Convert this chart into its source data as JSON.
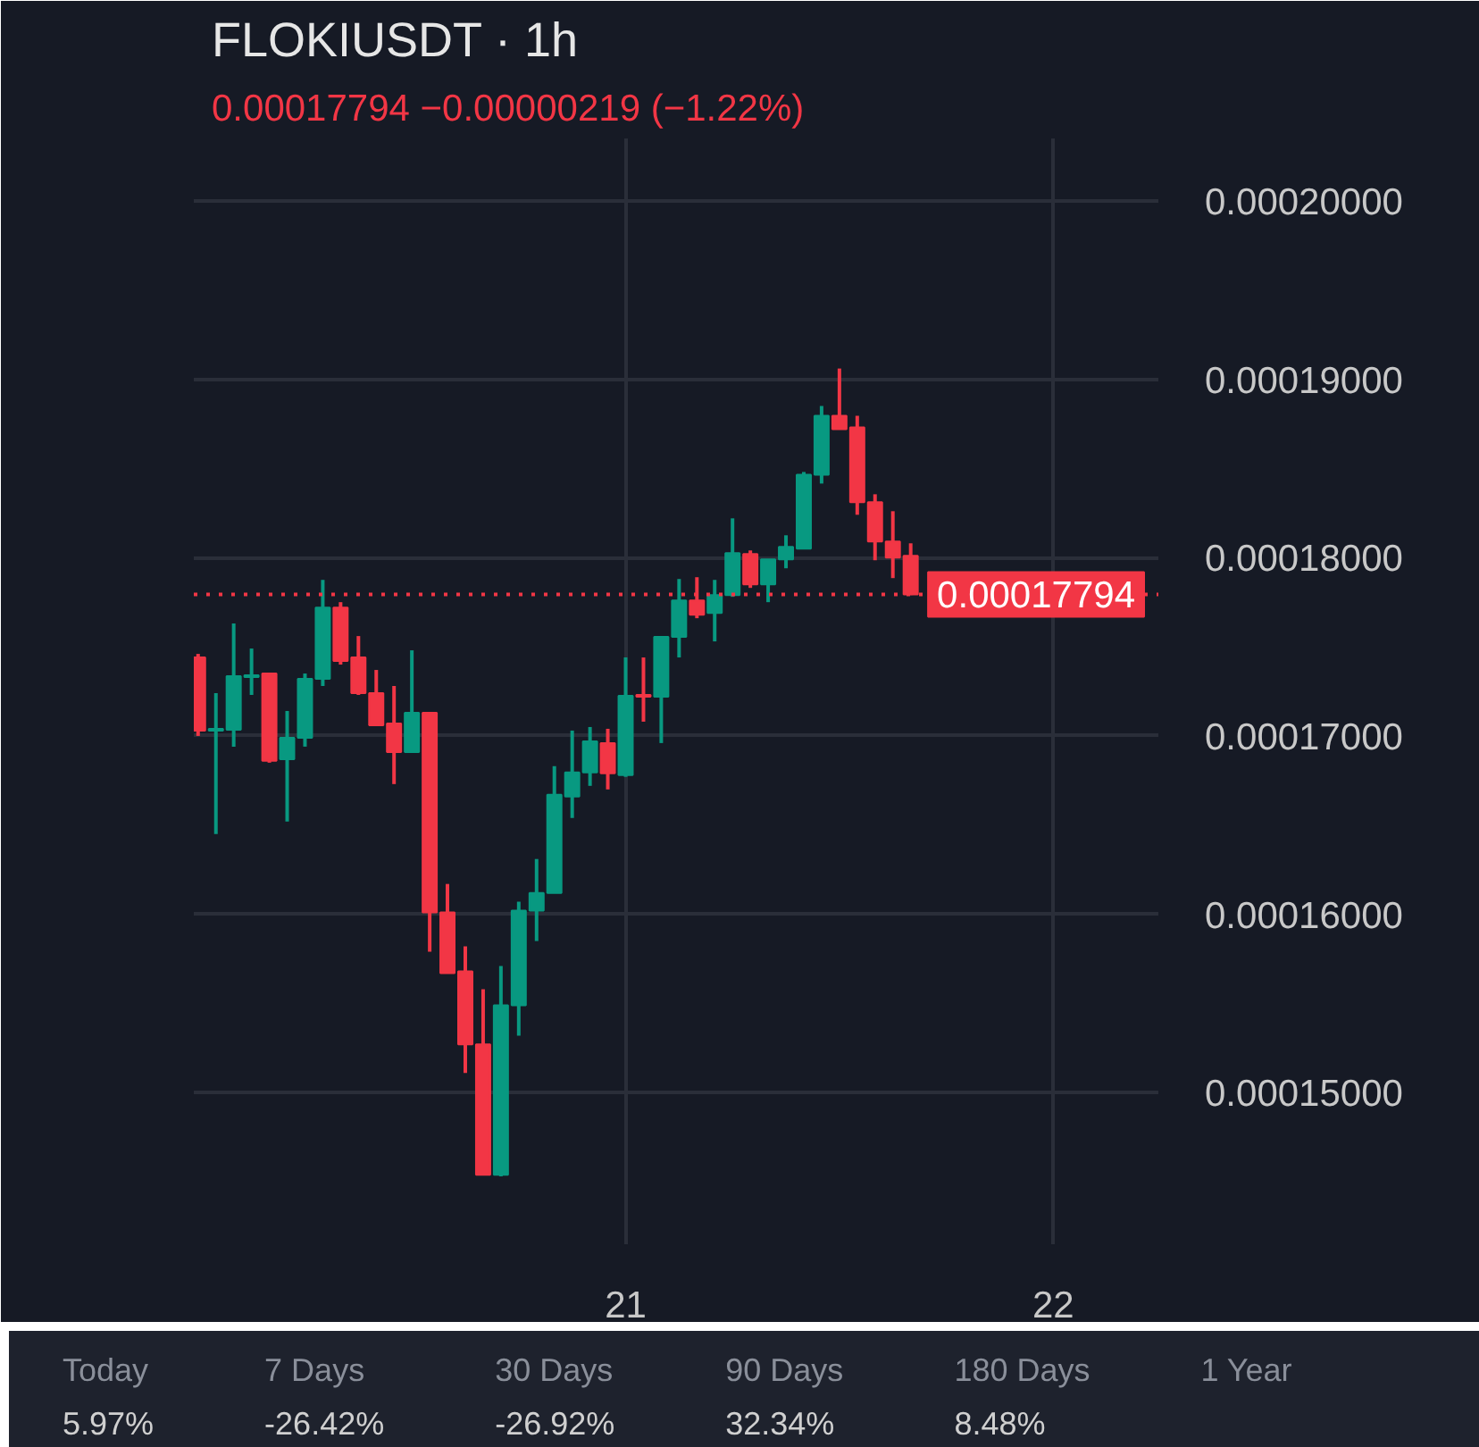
{
  "chart_data": {
    "type": "candlestick",
    "title": "FLOKIUSDT · 1h",
    "subtitle": "0.00017794  −0.00000219 (−1.22%)",
    "x": [
      20.0,
      20.0417,
      20.0833,
      20.125,
      20.1667,
      20.2083,
      20.25,
      20.2917,
      20.3333,
      20.375,
      20.4167,
      20.4583,
      20.5,
      20.5417,
      20.5833,
      20.625,
      20.6667,
      20.7083,
      20.75,
      20.7917,
      20.8333,
      20.875,
      20.9167,
      20.9583,
      21.0,
      21.0417,
      21.0833,
      21.125,
      21.1667,
      21.2083,
      21.25,
      21.2917,
      21.3333,
      21.375,
      21.4167,
      21.4583,
      21.5,
      21.5417,
      21.5833,
      21.625,
      21.6667
    ],
    "ohlc": [
      [
        0.0001744,
        0.0001746,
        0.00017,
        0.0001703
      ],
      [
        0.0001703,
        0.0001724,
        0.0001645,
        0.0001704
      ],
      [
        0.00017035,
        0.0001763,
        0.0001694,
        0.00017335
      ],
      [
        0.0001733,
        0.0001749,
        0.0001723,
        0.0001734
      ],
      [
        0.0001735,
        0.0001735,
        0.0001685,
        0.0001686
      ],
      [
        0.0001687,
        0.0001714,
        0.0001652,
        0.0001699
      ],
      [
        0.0001699,
        0.0001735,
        0.0001694,
        0.0001732
      ],
      [
        0.0001732,
        0.00017875,
        0.0001728,
        0.0001772
      ],
      [
        0.0001772,
        0.0001775,
        0.000174,
        0.0001742
      ],
      [
        0.0001744,
        0.0001756,
        0.0001723,
        0.0001724
      ],
      [
        0.0001724,
        0.0001737,
        0.00017055,
        0.0001706
      ],
      [
        0.0001707,
        0.0001728,
        0.0001673,
        0.0001691
      ],
      [
        0.0001691,
        0.0001748,
        0.0001691,
        0.0001713
      ],
      [
        0.0001713,
        0.0001713,
        0.0001579,
        0.0001601
      ],
      [
        0.0001601,
        0.0001617,
        0.0001567,
        0.0001567
      ],
      [
        0.0001568,
        0.0001582,
        0.0001511,
        0.0001527
      ],
      [
        0.0001527,
        0.0001558,
        0.0001454,
        0.0001454
      ],
      [
        0.0001454,
        0.0001571,
        0.0001453,
        0.0001549
      ],
      [
        0.0001549,
        0.0001607,
        0.0001532,
        0.0001602
      ],
      [
        0.0001602,
        0.0001631,
        0.0001585,
        0.0001612
      ],
      [
        0.0001612,
        0.0001683,
        0.0001612,
        0.0001667
      ],
      [
        0.0001666,
        0.0001703,
        0.0001654,
        0.00016795
      ],
      [
        0.00016795,
        0.0001705,
        0.0001672,
        0.0001697
      ],
      [
        0.0001696,
        0.0001704,
        0.000167,
        0.0001679
      ],
      [
        0.0001678,
        0.0001744,
        0.0001677,
        0.00017225
      ],
      [
        0.0001723,
        0.0001744,
        0.0001708,
        0.0001722
      ],
      [
        0.0001722,
        0.0001756,
        0.0001696,
        0.00017555
      ],
      [
        0.00017555,
        0.0001788,
        0.0001744,
        0.0001776
      ],
      [
        0.0001776,
        0.0001789,
        0.0001766,
        0.0001768
      ],
      [
        0.0001769,
        0.00017875,
        0.0001753,
        0.0001779
      ],
      [
        0.0001779,
        0.0001822,
        0.0001778,
        0.00018025
      ],
      [
        0.0001802,
        0.0001804,
        0.0001783,
        0.0001785
      ],
      [
        0.0001785,
        0.0001799,
        0.0001775,
        0.0001799
      ],
      [
        0.0001799,
        0.00018125,
        0.0001794,
        0.0001806
      ],
      [
        0.0001805,
        0.0001848,
        0.0001805,
        0.00018465
      ],
      [
        0.00018465,
        0.0001885,
        0.00018415,
        0.00018795
      ],
      [
        0.00018795,
        0.0001906,
        0.0001872,
        0.0001872
      ],
      [
        0.0001873,
        0.00018795,
        0.0001824,
        0.0001831
      ],
      [
        0.0001831,
        0.00018355,
        0.00017985,
        0.0001809
      ],
      [
        0.0001809,
        0.0001826,
        0.00017885,
        0.00018
      ],
      [
        0.0001801,
        0.0001808,
        0.0001779,
        0.00017794
      ]
    ],
    "colors": [
      "#f23645",
      "#089981",
      "#089981",
      "#089981",
      "#f23645",
      "#089981",
      "#089981",
      "#089981",
      "#f23645",
      "#f23645",
      "#f23645",
      "#f23645",
      "#089981",
      "#f23645",
      "#f23645",
      "#f23645",
      "#f23645",
      "#089981",
      "#089981",
      "#089981",
      "#089981",
      "#089981",
      "#089981",
      "#f23645",
      "#089981",
      "#f23645",
      "#089981",
      "#089981",
      "#f23645",
      "#089981",
      "#089981",
      "#f23645",
      "#089981",
      "#089981",
      "#089981",
      "#089981",
      "#f23645",
      "#f23645",
      "#f23645",
      "#f23645",
      "#f23645"
    ],
    "xlim": [
      19.99,
      22.246
    ],
    "xticks": [
      21,
      22
    ],
    "ylim": [
      0.0001415,
      0.0002035
    ],
    "yticks": [
      {
        "value": 0.00015,
        "label": "0.00015000"
      },
      {
        "value": 0.00016,
        "label": "0.00016000"
      },
      {
        "value": 0.00017,
        "label": "0.00017000"
      },
      {
        "value": 0.00018,
        "label": "0.00018000"
      },
      {
        "value": 0.00019,
        "label": "0.00019000"
      },
      {
        "value": 0.0002,
        "label": "0.00020000"
      }
    ],
    "grid": true,
    "ref_lines": [
      {
        "axis": "y",
        "value": 0.00017794,
        "label": "0.00017794",
        "color": "#f23645",
        "line_style": "dotted"
      }
    ],
    "annotations": [
      "Today",
      "5.97%",
      "7 Days",
      "-26.42%",
      "30 Days",
      "-26.92%",
      "90 Days",
      "32.34%",
      "180 Days",
      "8.48%",
      "1 Year"
    ]
  }
}
